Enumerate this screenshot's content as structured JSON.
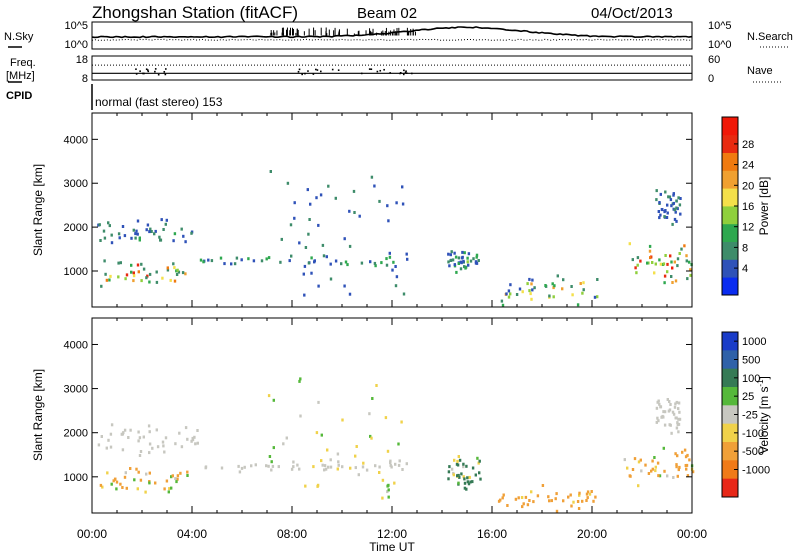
{
  "header": {
    "title": "Zhongshan Station (fitACF)",
    "beam": "Beam 02",
    "date": "04/Oct/2013"
  },
  "status_panels": {
    "nsky_label": "N.Sky",
    "nsky_ticks": [
      "10^5",
      "10^0"
    ],
    "nsearch_label": "N.Search",
    "nsearch_ticks": [
      "10^5",
      "10^0"
    ],
    "freq_label_1": "Freq.",
    "freq_label_2": "[MHz]",
    "freq_ticks": [
      "18",
      "8"
    ],
    "nave_label": "Nave",
    "nave_ticks": [
      "60",
      "0"
    ],
    "cpid_label": "CPID",
    "cpid_value": "normal (fast stereo) 153"
  },
  "x_axis": {
    "label": "Time UT",
    "ticks": [
      "00:00",
      "04:00",
      "08:00",
      "12:00",
      "16:00",
      "20:00",
      "00:00"
    ]
  },
  "power_colorbar": {
    "label": "Power [dB]",
    "ticks": [
      "4",
      "8",
      "12",
      "16",
      "20",
      "24",
      "28"
    ],
    "colors": [
      "#0a2cf0",
      "#2f52b8",
      "#3e8c6a",
      "#2ea84f",
      "#8fcf3c",
      "#f4e04a",
      "#f0a030",
      "#f07a10",
      "#e82a10",
      "#f01808"
    ]
  },
  "velocity_colorbar": {
    "label": "Velocity [m s^-1]",
    "ticks": [
      "1000",
      "500",
      "100",
      "25",
      "-25",
      "-100",
      "-500",
      "-1000"
    ],
    "colors": [
      "#1a3cc8",
      "#2f61a8",
      "#357a55",
      "#55b83a",
      "#c7c7c0",
      "#f0d24a",
      "#f0a038",
      "#f07a18",
      "#e82818"
    ]
  },
  "chart_data": [
    {
      "type": "heatmap",
      "title": "Power",
      "xlabel": "Time UT",
      "ylabel": "Slant Range [km]",
      "xlim": [
        0,
        24
      ],
      "ylim": [
        180,
        4600
      ],
      "yticks": [
        "1000",
        "2000",
        "3000",
        "4000"
      ],
      "colorbar_label": "Power [dB]",
      "colorbar_ticks": [
        4,
        8,
        12,
        16,
        20,
        24,
        28
      ],
      "echo_regions": [
        {
          "t": [
            0.3,
            3.8
          ],
          "range_km": [
            600,
            1300
          ],
          "power_db": [
            6,
            26
          ]
        },
        {
          "t": [
            0.2,
            4.2
          ],
          "range_km": [
            1450,
            2200
          ],
          "power_db": [
            4,
            10
          ]
        },
        {
          "t": [
            4.0,
            13.0
          ],
          "range_km": [
            1100,
            1400
          ],
          "power_db": [
            4,
            12
          ]
        },
        {
          "t": [
            7.0,
            12.5
          ],
          "range_km": [
            400,
            3300
          ],
          "power_db": [
            4,
            8
          ]
        },
        {
          "t": [
            14.2,
            15.5
          ],
          "range_km": [
            900,
            1500
          ],
          "power_db": [
            4,
            14
          ]
        },
        {
          "t": [
            16.2,
            20.2
          ],
          "range_km": [
            180,
            900
          ],
          "power_db": [
            4,
            20
          ]
        },
        {
          "t": [
            21.2,
            24.0
          ],
          "range_km": [
            600,
            1700
          ],
          "power_db": [
            8,
            28
          ]
        },
        {
          "t": [
            22.5,
            23.5
          ],
          "range_km": [
            1900,
            2900
          ],
          "power_db": [
            4,
            8
          ]
        }
      ]
    },
    {
      "type": "heatmap",
      "title": "Velocity",
      "xlabel": "Time UT",
      "ylabel": "Slant Range [km]",
      "xlim": [
        0,
        24
      ],
      "ylim": [
        180,
        4600
      ],
      "yticks": [
        "1000",
        "2000",
        "3000",
        "4000"
      ],
      "colorbar_label": "Velocity [m s^-1]",
      "colorbar_ticks": [
        1000,
        500,
        100,
        25,
        -25,
        -100,
        -500,
        -1000
      ],
      "echo_regions": [
        {
          "t": [
            0.3,
            3.8
          ],
          "range_km": [
            600,
            1300
          ],
          "velocity_ms": [
            -500,
            100
          ]
        },
        {
          "t": [
            0.2,
            4.2
          ],
          "range_km": [
            1450,
            2200
          ],
          "velocity_ms": [
            -25,
            25
          ]
        },
        {
          "t": [
            4.0,
            13.0
          ],
          "range_km": [
            1100,
            1400
          ],
          "velocity_ms": [
            -25,
            25
          ]
        },
        {
          "t": [
            7.0,
            12.5
          ],
          "range_km": [
            400,
            3300
          ],
          "velocity_ms": [
            -100,
            100
          ]
        },
        {
          "t": [
            14.2,
            15.5
          ],
          "range_km": [
            700,
            1500
          ],
          "velocity_ms": [
            -100,
            500
          ]
        },
        {
          "t": [
            16.2,
            20.2
          ],
          "range_km": [
            180,
            900
          ],
          "velocity_ms": [
            -500,
            -25
          ]
        },
        {
          "t": [
            21.2,
            24.0
          ],
          "range_km": [
            600,
            1700
          ],
          "velocity_ms": [
            -500,
            100
          ]
        },
        {
          "t": [
            22.5,
            23.5
          ],
          "range_km": [
            1900,
            2900
          ],
          "velocity_ms": [
            -25,
            25
          ]
        }
      ]
    }
  ]
}
